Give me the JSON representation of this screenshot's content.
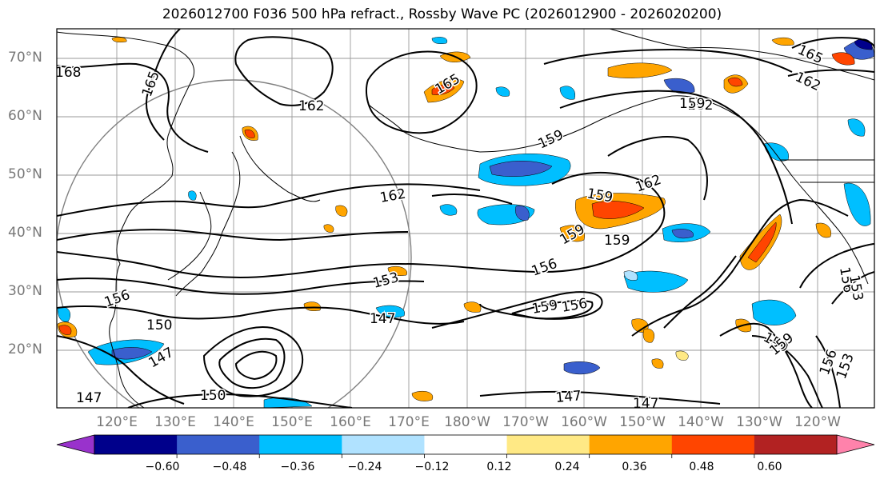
{
  "title": "2026012700 F036 500 hPa refract., Rossby Wave PC (2026012900 - 2026020200)",
  "lat_labels": [
    "70°N",
    "60°N",
    "50°N",
    "40°N",
    "30°N",
    "20°N"
  ],
  "lon_labels": [
    "120°E",
    "130°E",
    "140°E",
    "150°E",
    "160°E",
    "170°E",
    "180°W",
    "170°W",
    "160°W",
    "150°W",
    "140°W",
    "130°W",
    "120°W"
  ],
  "contour_labels": [
    "168",
    "165",
    "162",
    "165",
    "159",
    "162",
    "159",
    "162",
    "159",
    "159",
    "162",
    "156",
    "153",
    "147",
    "150",
    "156",
    "159",
    "156",
    "147",
    "147",
    "159",
    "159",
    "156",
    "153",
    "156",
    "153",
    "150",
    "147",
    "147",
    "165",
    "162",
    "159"
  ],
  "colorbar": {
    "ticks": [
      "−0.60",
      "−0.48",
      "−0.36",
      "−0.24",
      "−0.12",
      "0.12",
      "0.24",
      "0.36",
      "0.48",
      "0.60"
    ],
    "colors": [
      "#9932cc",
      "#00008b",
      "#3a5fcd",
      "#00bfff",
      "#b0e2ff",
      "#ffffff",
      "#ffe985",
      "#ffa500",
      "#ff4500",
      "#b22222",
      "#ff82ab"
    ]
  },
  "colors": {
    "neg_light": "#b0e2ff",
    "neg_mid": "#00bfff",
    "neg_strong": "#3a5fcd",
    "neg_max": "#00008b",
    "pos_light": "#ffe985",
    "pos_mid": "#ffa500",
    "pos_strong": "#ff4500",
    "pos_max": "#b22222"
  }
}
